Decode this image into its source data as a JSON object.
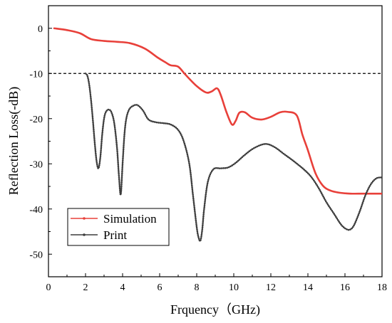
{
  "chart_data": {
    "type": "line",
    "title": "",
    "xlabel": "Frquency（GHz)",
    "ylabel": "Reflection Loss(-dB)",
    "xlim": [
      0,
      18
    ],
    "ylim": [
      -55,
      5
    ],
    "xticks": [
      0,
      2,
      4,
      6,
      8,
      10,
      12,
      14,
      16,
      18
    ],
    "yticks": [
      0,
      -10,
      -20,
      -30,
      -40,
      -50
    ],
    "xtick_labels": [
      "0",
      "2",
      "4",
      "6",
      "8",
      "10",
      "12",
      "14",
      "16",
      "18"
    ],
    "ytick_labels": [
      "0",
      "-10",
      "-20",
      "-30",
      "-40",
      "-50"
    ],
    "grid": false,
    "legend_position": "bottom-left",
    "reference_line": {
      "y": -10,
      "style": "dashed",
      "color": "#000000"
    },
    "series": [
      {
        "name": "Simulation",
        "color": "#e8403a",
        "marker": "dot",
        "x": [
          0.3,
          1.0,
          1.7,
          2.3,
          3.0,
          3.7,
          4.4,
          5.2,
          5.9,
          6.3,
          6.6,
          7.0,
          7.4,
          8.0,
          8.5,
          8.8,
          9.1,
          9.3,
          9.6,
          9.9,
          10.1,
          10.3,
          10.6,
          11.0,
          11.5,
          12.0,
          12.5,
          12.9,
          13.4,
          13.7,
          14.0,
          14.4,
          14.8,
          15.2,
          15.7,
          16.3,
          17.0,
          18.0
        ],
        "y": [
          0.0,
          -0.4,
          -1.1,
          -2.4,
          -2.8,
          -3.0,
          -3.3,
          -4.5,
          -6.5,
          -7.5,
          -8.2,
          -8.5,
          -10.3,
          -12.8,
          -14.2,
          -14.0,
          -13.3,
          -14.8,
          -18.5,
          -21.3,
          -20.5,
          -18.7,
          -18.6,
          -19.8,
          -20.2,
          -19.6,
          -18.6,
          -18.5,
          -19.3,
          -23.5,
          -27.0,
          -32.0,
          -34.8,
          -35.9,
          -36.4,
          -36.6,
          -36.6,
          -36.6
        ]
      },
      {
        "name": "Print",
        "color": "#3d3d3d",
        "marker": "dot",
        "x": [
          2.0,
          2.1,
          2.2,
          2.3,
          2.4,
          2.5,
          2.6,
          2.7,
          2.8,
          2.9,
          3.0,
          3.1,
          3.25,
          3.4,
          3.55,
          3.7,
          3.8,
          3.9,
          4.0,
          4.1,
          4.2,
          4.35,
          4.55,
          4.8,
          5.1,
          5.4,
          5.8,
          6.2,
          6.6,
          7.0,
          7.3,
          7.6,
          7.8,
          8.0,
          8.1,
          8.2,
          8.3,
          8.4,
          8.6,
          8.9,
          9.3,
          9.7,
          10.1,
          10.6,
          11.1,
          11.7,
          12.2,
          12.7,
          13.2,
          13.8,
          14.2,
          14.6,
          15.0,
          15.4,
          15.8,
          16.1,
          16.3,
          16.5,
          16.8,
          17.1,
          17.4,
          17.7,
          18.0
        ],
        "y": [
          -10.0,
          -10.5,
          -12.5,
          -16.0,
          -20.5,
          -25.5,
          -29.5,
          -31.0,
          -28.5,
          -23.5,
          -20.0,
          -18.5,
          -18.0,
          -18.6,
          -21.0,
          -26.5,
          -32.5,
          -36.8,
          -30.0,
          -23.5,
          -20.0,
          -18.0,
          -17.2,
          -17.0,
          -18.2,
          -20.2,
          -20.8,
          -21.0,
          -21.3,
          -22.5,
          -25.0,
          -30.0,
          -37.0,
          -44.0,
          -46.3,
          -47.0,
          -44.5,
          -40.0,
          -34.0,
          -31.2,
          -31.0,
          -30.8,
          -29.8,
          -28.0,
          -26.5,
          -25.6,
          -26.3,
          -27.8,
          -29.3,
          -31.3,
          -33.0,
          -35.5,
          -38.5,
          -41.0,
          -43.5,
          -44.5,
          -44.5,
          -43.5,
          -40.5,
          -37.0,
          -34.5,
          -33.2,
          -33.0
        ]
      }
    ]
  }
}
